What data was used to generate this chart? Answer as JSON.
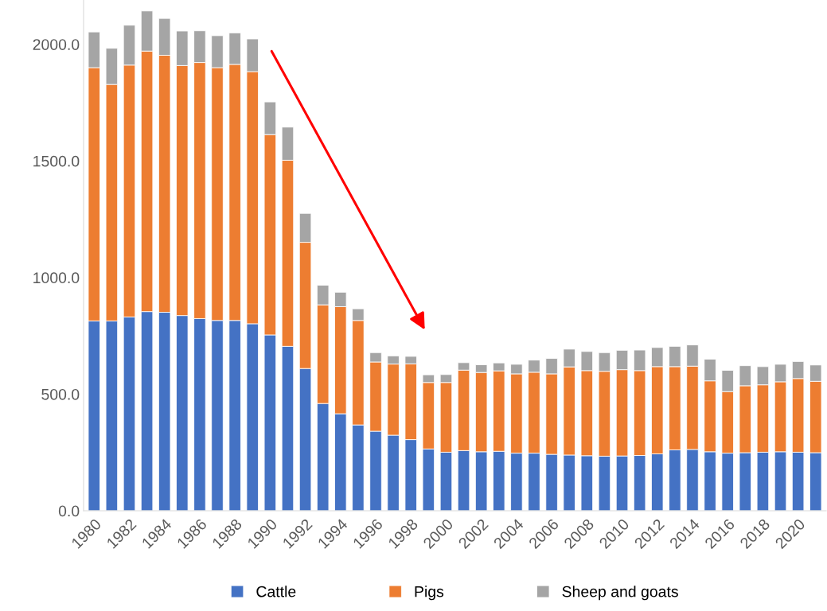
{
  "chart_data": {
    "type": "bar",
    "stacked": true,
    "categories": [
      "1980",
      null,
      "1982",
      null,
      "1984",
      null,
      "1986",
      null,
      "1988",
      null,
      "1990",
      null,
      "1992",
      null,
      "1994",
      null,
      "1996",
      null,
      "1998",
      null,
      "2000",
      null,
      "2002",
      null,
      "2004",
      null,
      "2006",
      null,
      "2008",
      null,
      "2010",
      null,
      "2012",
      null,
      "2014",
      null,
      "2016",
      null,
      "2018",
      null,
      "2020",
      null
    ],
    "series": [
      {
        "name": "Cattle",
        "color": "#4472c4",
        "values": [
          814,
          814,
          831,
          854,
          851,
          837,
          824,
          816,
          816,
          802,
          754,
          705,
          610,
          460,
          416,
          368,
          341,
          324,
          305,
          265,
          251,
          258,
          253,
          255,
          247,
          247,
          242,
          239,
          236,
          234,
          235,
          237,
          244,
          261,
          263,
          253,
          247,
          249,
          251,
          253,
          251,
          249
        ]
      },
      {
        "name": "Pigs",
        "color": "#ed7d31",
        "values": [
          1086,
          1014,
          1080,
          1117,
          1102,
          1072,
          1098,
          1084,
          1098,
          1081,
          859,
          798,
          541,
          423,
          459,
          448,
          297,
          305,
          325,
          285,
          299,
          345,
          340,
          345,
          340,
          347,
          345,
          378,
          365,
          364,
          370,
          364,
          374,
          357,
          357,
          304,
          264,
          287,
          289,
          300,
          316,
          306
        ]
      },
      {
        "name": "Sheep and goats",
        "color": "#a5a5a5",
        "values": [
          153,
          155,
          171,
          172,
          158,
          148,
          136,
          137,
          135,
          140,
          140,
          142,
          124,
          84,
          62,
          50,
          40,
          35,
          32,
          33,
          34,
          32,
          33,
          34,
          41,
          52,
          66,
          76,
          82,
          80,
          83,
          88,
          82,
          87,
          91,
          93,
          91,
          86,
          78,
          75,
          73,
          70
        ]
      }
    ],
    "ylim": [
      0,
      2190
    ],
    "yticks": [
      {
        "value": 0,
        "label": "0.0"
      },
      {
        "value": 500,
        "label": "500.0"
      },
      {
        "value": 1000,
        "label": "1000.0"
      },
      {
        "value": 1500,
        "label": "1500.0"
      },
      {
        "value": 2000,
        "label": "2000.0"
      }
    ],
    "grid": false,
    "legend": "bottom"
  }
}
